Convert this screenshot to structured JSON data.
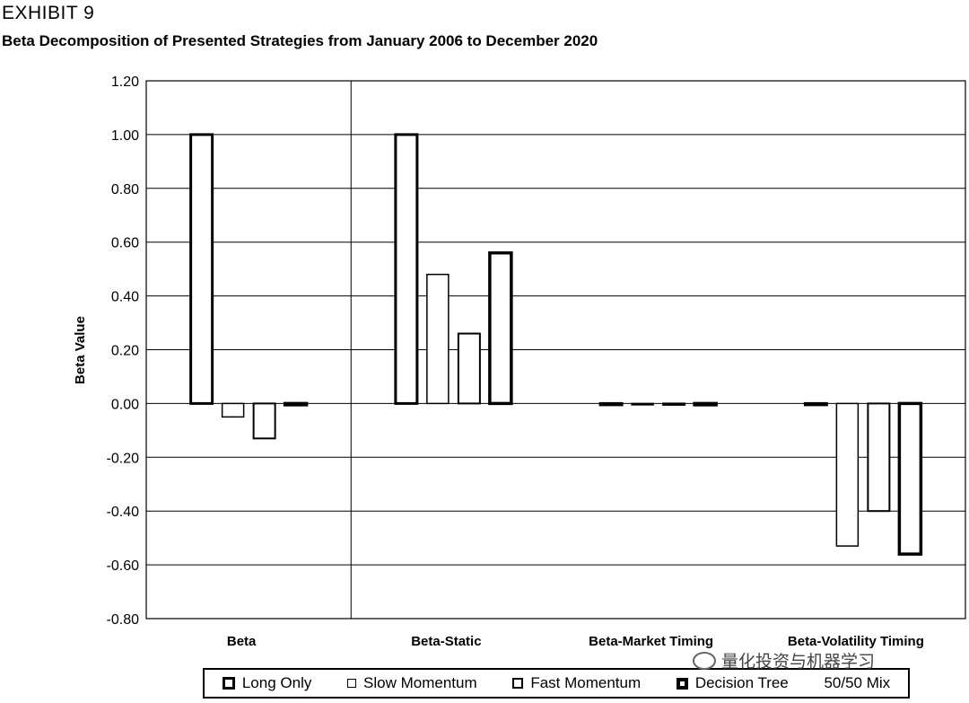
{
  "header": {
    "exhibit": "EXHIBIT 9",
    "title": "Beta Decomposition of Presented Strategies from January 2006 to December 2020"
  },
  "watermark": "量化投资与机器学习",
  "chart_data": {
    "type": "bar",
    "title": "Beta Decomposition of Presented Strategies from January 2006 to December 2020",
    "ylabel": "Beta Value",
    "xlabel": "",
    "ylim": [
      -0.8,
      1.2
    ],
    "yticks": [
      1.2,
      1.0,
      0.8,
      0.6,
      0.4,
      0.2,
      0.0,
      -0.2,
      -0.4,
      -0.6,
      -0.8
    ],
    "ytick_labels": [
      "1.20",
      "1.00",
      "0.80",
      "0.60",
      "0.40",
      "0.20",
      "0.00",
      "-0.20",
      "-0.40",
      "-0.60",
      "-0.80"
    ],
    "categories": [
      "Beta",
      "Beta-Static",
      "Beta-Market Timing",
      "Beta-Volatility Timing"
    ],
    "grid": true,
    "legend_position": "bottom",
    "series": [
      {
        "name": "Long Only",
        "values": [
          1.0,
          1.0,
          0.0,
          0.0
        ]
      },
      {
        "name": "Slow Momentum",
        "values": [
          -0.05,
          0.48,
          0.0,
          -0.53
        ]
      },
      {
        "name": "Fast Momentum",
        "values": [
          -0.13,
          0.26,
          0.0,
          -0.4
        ]
      },
      {
        "name": "Decision Tree",
        "values": [
          0.0,
          0.56,
          0.0,
          -0.56
        ]
      },
      {
        "name": "50/50 Mix",
        "values": [
          null,
          null,
          null,
          null
        ]
      }
    ],
    "series_stroke_widths": [
      3,
      1.5,
      2,
      3.5
    ]
  },
  "legend": {
    "items": [
      "Long Only",
      "Slow Momentum",
      "Fast Momentum",
      "Decision Tree",
      "50/50 Mix"
    ]
  }
}
